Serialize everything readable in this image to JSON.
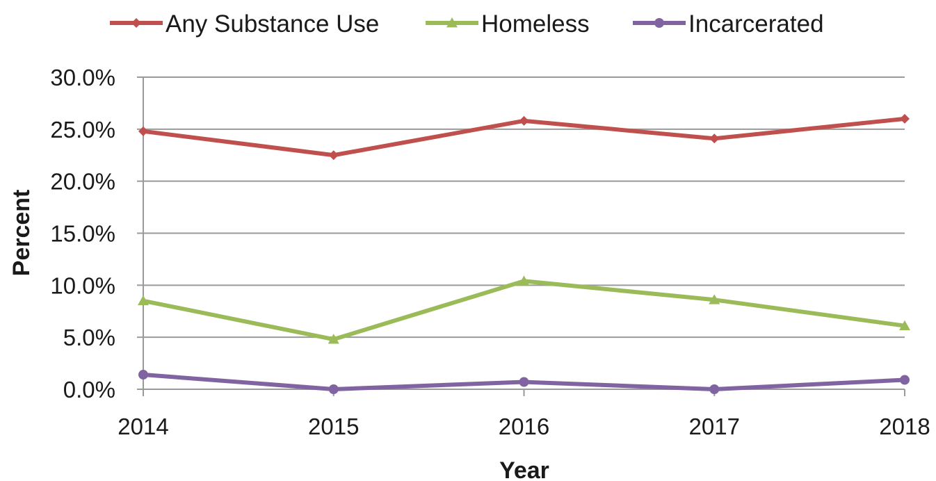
{
  "chart_data": {
    "type": "line",
    "title": "",
    "xlabel": "Year",
    "ylabel": "Percent",
    "categories": [
      "2014",
      "2015",
      "2016",
      "2017",
      "2018"
    ],
    "y_ticks": [
      "0.0%",
      "5.0%",
      "10.0%",
      "15.0%",
      "20.0%",
      "25.0%",
      "30.0%"
    ],
    "ylim": [
      0,
      30
    ],
    "grid": true,
    "legend_position": "top",
    "series": [
      {
        "name": "Any Substance Use",
        "values": [
          24.8,
          22.5,
          25.8,
          24.1,
          26.0
        ],
        "color": "#c0504d",
        "marker": "diamond"
      },
      {
        "name": "Homeless",
        "values": [
          8.5,
          4.8,
          10.4,
          8.6,
          6.1
        ],
        "color": "#9bbb59",
        "marker": "triangle"
      },
      {
        "name": "Incarcerated",
        "values": [
          1.4,
          0.0,
          0.7,
          0.0,
          0.9
        ],
        "color": "#8064a2",
        "marker": "circle"
      }
    ]
  }
}
